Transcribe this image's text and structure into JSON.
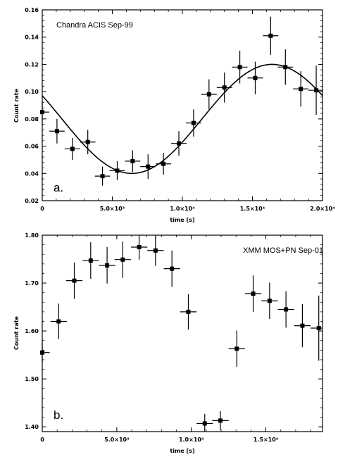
{
  "chart_data": [
    {
      "type": "scatter",
      "annotation": "Chandra ACIS Sep-99",
      "panel_label": "a.",
      "xlabel": "time [s]",
      "ylabel": "Count rate",
      "xlim": [
        0,
        20000
      ],
      "ylim": [
        0.02,
        0.16
      ],
      "x_ticks": [
        0,
        5000,
        10000,
        15000,
        20000
      ],
      "x_tick_labels": [
        "0",
        "5.0×10³",
        "1.0×10⁴",
        "1.5×10⁴",
        "2.0×10⁴"
      ],
      "y_ticks": [
        0.02,
        0.04,
        0.06,
        0.08,
        0.1,
        0.12,
        0.14,
        0.16
      ],
      "y_tick_labels": [
        "0.02",
        "0.04",
        "0.06",
        "0.08",
        "0.10",
        "0.12",
        "0.14",
        "0.16"
      ],
      "points": [
        {
          "x": 0,
          "y": 0.085,
          "xerr": 500,
          "yerr": 0.008
        },
        {
          "x": 1050,
          "y": 0.071,
          "xerr": 550,
          "yerr": 0.009
        },
        {
          "x": 2150,
          "y": 0.058,
          "xerr": 550,
          "yerr": 0.008
        },
        {
          "x": 3250,
          "y": 0.063,
          "xerr": 550,
          "yerr": 0.009
        },
        {
          "x": 4300,
          "y": 0.038,
          "xerr": 550,
          "yerr": 0.007
        },
        {
          "x": 5350,
          "y": 0.042,
          "xerr": 550,
          "yerr": 0.007
        },
        {
          "x": 6450,
          "y": 0.049,
          "xerr": 550,
          "yerr": 0.008
        },
        {
          "x": 7550,
          "y": 0.045,
          "xerr": 550,
          "yerr": 0.009
        },
        {
          "x": 8650,
          "y": 0.047,
          "xerr": 550,
          "yerr": 0.008
        },
        {
          "x": 9750,
          "y": 0.062,
          "xerr": 550,
          "yerr": 0.009
        },
        {
          "x": 10800,
          "y": 0.077,
          "xerr": 550,
          "yerr": 0.01
        },
        {
          "x": 11900,
          "y": 0.098,
          "xerr": 550,
          "yerr": 0.011
        },
        {
          "x": 13000,
          "y": 0.103,
          "xerr": 550,
          "yerr": 0.011
        },
        {
          "x": 14100,
          "y": 0.118,
          "xerr": 550,
          "yerr": 0.012
        },
        {
          "x": 15200,
          "y": 0.11,
          "xerr": 550,
          "yerr": 0.012
        },
        {
          "x": 16300,
          "y": 0.141,
          "xerr": 550,
          "yerr": 0.014
        },
        {
          "x": 17350,
          "y": 0.118,
          "xerr": 550,
          "yerr": 0.013
        },
        {
          "x": 18450,
          "y": 0.102,
          "xerr": 550,
          "yerr": 0.013
        },
        {
          "x": 19550,
          "y": 0.101,
          "xerr": 550,
          "yerr": 0.018
        }
      ],
      "model_curve": {
        "type": "sinusoid",
        "mean": 0.08,
        "amplitude": 0.04,
        "period": 20000,
        "t_max": 16400
      }
    },
    {
      "type": "scatter",
      "annotation": "XMM MOS+PN Sep-01",
      "panel_label": "b.",
      "xlabel": "time [s]",
      "ylabel": "Count rate",
      "xlim": [
        0,
        18800
      ],
      "ylim": [
        1.39,
        1.8
      ],
      "x_ticks": [
        0,
        5000,
        10000,
        15000
      ],
      "x_tick_labels": [
        "0",
        "5.0×10³",
        "1.0×10⁴",
        "1.5×10⁴"
      ],
      "y_ticks": [
        1.4,
        1.5,
        1.6,
        1.7,
        1.8
      ],
      "y_tick_labels": [
        "1.40",
        "1.50",
        "1.60",
        "1.70",
        "1.80"
      ],
      "points": [
        {
          "x": 0,
          "y": 1.555,
          "xerr": 500,
          "yerr": 0.02
        },
        {
          "x": 1100,
          "y": 1.62,
          "xerr": 550,
          "yerr": 0.037
        },
        {
          "x": 2150,
          "y": 1.705,
          "xerr": 550,
          "yerr": 0.038
        },
        {
          "x": 3250,
          "y": 1.747,
          "xerr": 550,
          "yerr": 0.038
        },
        {
          "x": 4350,
          "y": 1.737,
          "xerr": 550,
          "yerr": 0.038
        },
        {
          "x": 5400,
          "y": 1.749,
          "xerr": 550,
          "yerr": 0.038
        },
        {
          "x": 6500,
          "y": 1.775,
          "xerr": 550,
          "yerr": 0.026
        },
        {
          "x": 7600,
          "y": 1.768,
          "xerr": 550,
          "yerr": 0.032
        },
        {
          "x": 8700,
          "y": 1.73,
          "xerr": 550,
          "yerr": 0.038
        },
        {
          "x": 9800,
          "y": 1.64,
          "xerr": 550,
          "yerr": 0.037
        },
        {
          "x": 10900,
          "y": 1.407,
          "xerr": 550,
          "yerr": 0.02
        },
        {
          "x": 11950,
          "y": 1.413,
          "xerr": 550,
          "yerr": 0.02
        },
        {
          "x": 13050,
          "y": 1.563,
          "xerr": 550,
          "yerr": 0.038
        },
        {
          "x": 14150,
          "y": 1.678,
          "xerr": 550,
          "yerr": 0.038
        },
        {
          "x": 15250,
          "y": 1.663,
          "xerr": 550,
          "yerr": 0.038
        },
        {
          "x": 16350,
          "y": 1.645,
          "xerr": 550,
          "yerr": 0.038
        },
        {
          "x": 17450,
          "y": 1.611,
          "xerr": 550,
          "yerr": 0.045
        },
        {
          "x": 18550,
          "y": 1.606,
          "xerr": 550,
          "yerr": 0.068
        }
      ]
    }
  ]
}
